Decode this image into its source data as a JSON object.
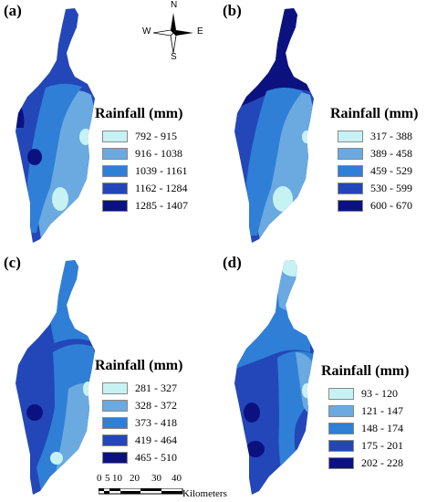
{
  "colors": [
    "#c7f2f4",
    "#6aaae0",
    "#2f7fd6",
    "#2347b8",
    "#0b127f"
  ],
  "panels": [
    {
      "label": "(a)",
      "legend_title": "Rainfall (mm)",
      "classes": [
        "792 - 915",
        "916 - 1038",
        "1039 - 1161",
        "1162 - 1284",
        "1285 - 1407"
      ]
    },
    {
      "label": "(b)",
      "legend_title": "Rainfall (mm)",
      "classes": [
        "317 - 388",
        "389 - 458",
        "459 - 529",
        "530 - 599",
        "600 - 670"
      ]
    },
    {
      "label": "(c)",
      "legend_title": "Rainfall (mm)",
      "classes": [
        "281 - 327",
        "328 - 372",
        "373 - 418",
        "419 - 464",
        "465 - 510"
      ]
    },
    {
      "label": "(d)",
      "legend_title": "Rainfall (mm)",
      "classes": [
        "93 - 120",
        "121 - 147",
        "148 - 174",
        "175 - 201",
        "202 - 228"
      ]
    }
  ],
  "compass": {
    "n": "N",
    "s": "S",
    "e": "E",
    "w": "W"
  },
  "scale": {
    "ticks": [
      "0",
      "5",
      "10",
      "20",
      "30",
      "40"
    ],
    "unit": "Kilometers"
  }
}
